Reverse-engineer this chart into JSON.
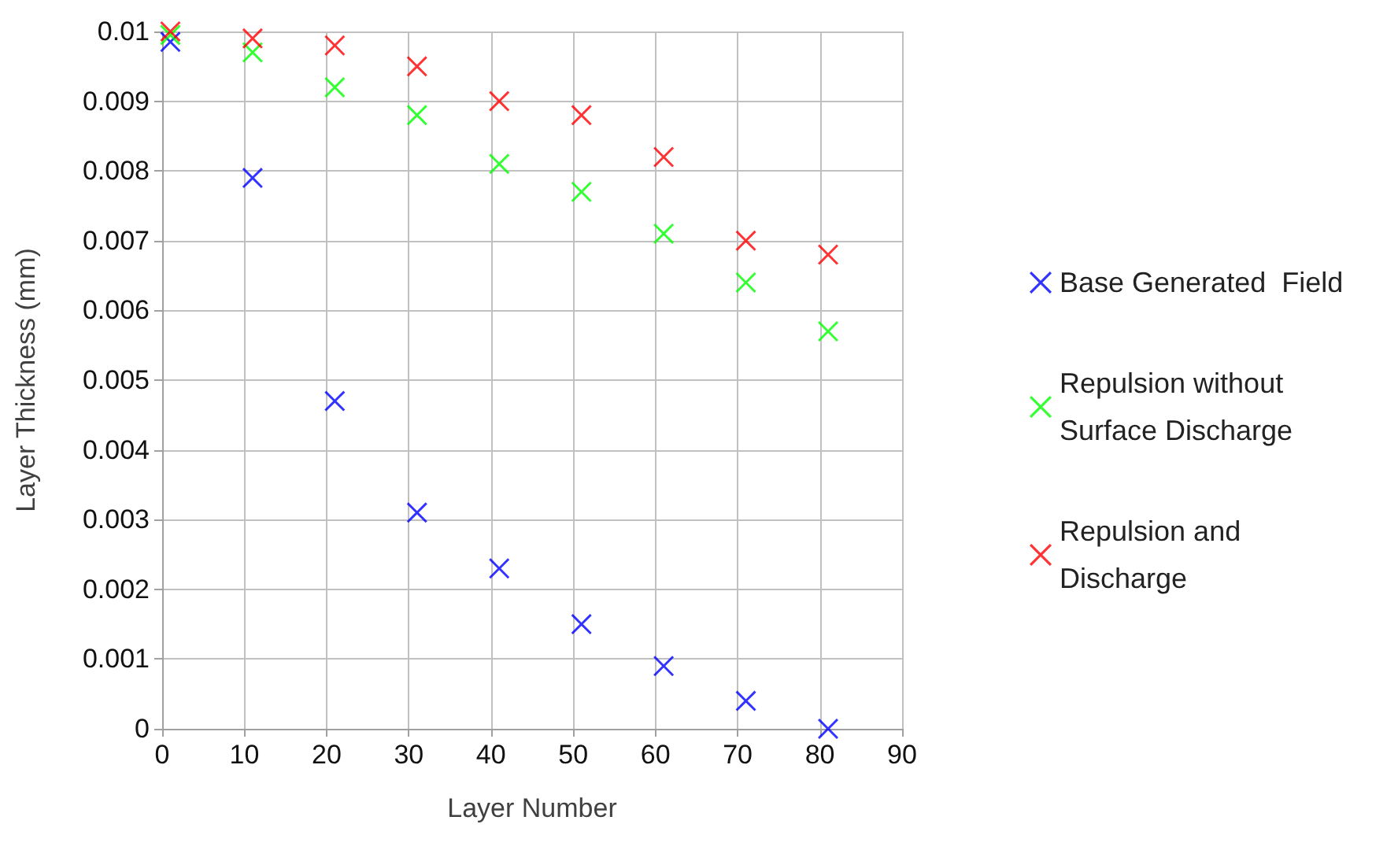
{
  "chart_data": {
    "type": "scatter",
    "xlabel": "Layer Number",
    "ylabel": "Layer Thickness (mm)",
    "x": [
      1,
      11,
      21,
      31,
      41,
      51,
      61,
      71,
      81
    ],
    "series": [
      {
        "name": "Base Generated  Field",
        "color": "#0000ff",
        "values": [
          0.00985,
          0.0079,
          0.0047,
          0.0031,
          0.0023,
          0.0015,
          0.0009,
          0.0004,
          0
        ]
      },
      {
        "name": "Repulsion without Surface Discharge",
        "color": "#00ff00",
        "values": [
          0.00995,
          0.0097,
          0.0092,
          0.0088,
          0.0081,
          0.0077,
          0.0071,
          0.0064,
          0.0057
        ]
      },
      {
        "name": "Repulsion and Discharge",
        "color": "#ff0000",
        "values": [
          0.01,
          0.0099,
          0.0098,
          0.0095,
          0.009,
          0.0088,
          0.0082,
          0.007,
          0.0068
        ]
      }
    ],
    "xlim": [
      0,
      90
    ],
    "xticks": [
      0,
      10,
      20,
      30,
      40,
      50,
      60,
      70,
      80,
      90
    ],
    "ylim": [
      0,
      0.01
    ],
    "yticks": [
      0,
      0.001,
      0.002,
      0.003,
      0.004,
      0.005,
      0.006,
      0.007,
      0.008,
      0.009,
      0.01
    ],
    "grid": true,
    "legend": "right",
    "marker": "cross"
  }
}
